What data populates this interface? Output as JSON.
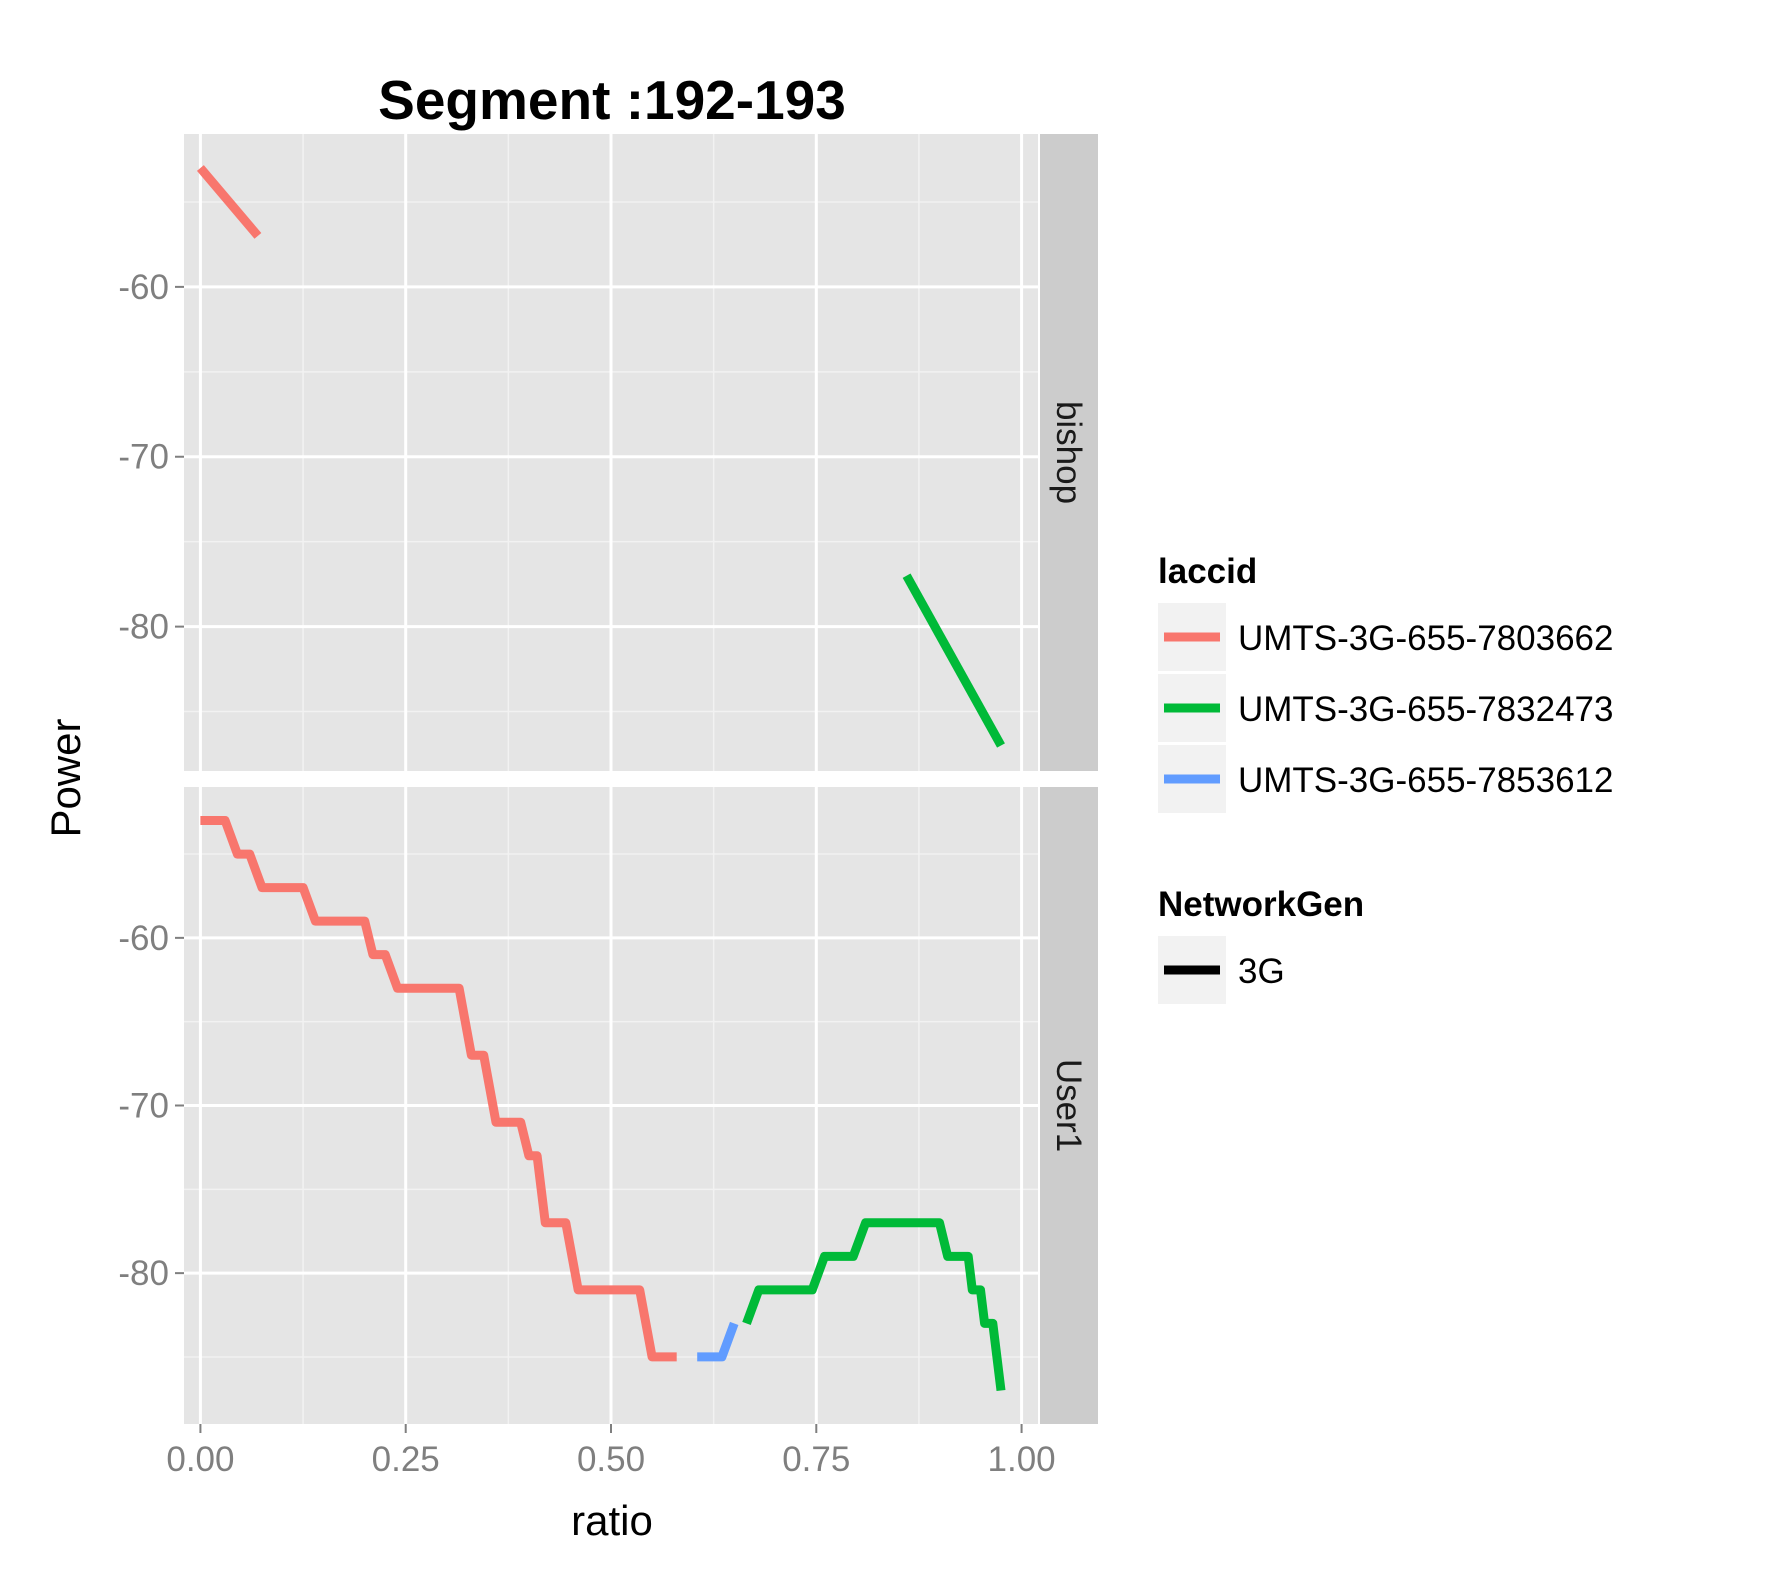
{
  "chart_data": {
    "type": "line",
    "title": "Segment :192-193",
    "xlabel": "ratio",
    "ylabel": "Power",
    "xlim": [
      -0.02,
      1.02
    ],
    "x_ticks": [
      "0.00",
      "0.25",
      "0.50",
      "0.75",
      "1.00"
    ],
    "x_tick_values": [
      0,
      0.25,
      0.5,
      0.75,
      1.0
    ],
    "grid": true,
    "legend_position": "right",
    "legends": [
      {
        "title": "laccid",
        "entries": [
          {
            "label": "UMTS-3G-655-7803662",
            "color": "#f8766d"
          },
          {
            "label": "UMTS-3G-655-7832473",
            "color": "#00ba38"
          },
          {
            "label": "UMTS-3G-655-7853612",
            "color": "#619cff"
          }
        ]
      },
      {
        "title": "NetworkGen",
        "entries": [
          {
            "label": "3G",
            "color": "#000000"
          }
        ]
      }
    ],
    "facets": [
      {
        "label": "bishop",
        "ylim": [
          -88.5,
          -51
        ],
        "y_ticks": [
          "-60",
          "-70",
          "-80"
        ],
        "y_tick_values": [
          -60,
          -70,
          -80
        ],
        "series": [
          {
            "name": "UMTS-3G-655-7803662",
            "color": "#f8766d",
            "points": [
              [
                0.0,
                -53
              ],
              [
                0.07,
                -57
              ]
            ]
          },
          {
            "name": "UMTS-3G-655-7832473",
            "color": "#00ba38",
            "points": [
              [
                0.86,
                -77
              ],
              [
                0.975,
                -87
              ]
            ]
          }
        ]
      },
      {
        "label": "User1",
        "ylim": [
          -89,
          -51
        ],
        "y_ticks": [
          "-60",
          "-70",
          "-80"
        ],
        "y_tick_values": [
          -60,
          -70,
          -80
        ],
        "series": [
          {
            "name": "UMTS-3G-655-7803662",
            "color": "#f8766d",
            "points": [
              [
                0.0,
                -53
              ],
              [
                0.03,
                -53
              ],
              [
                0.045,
                -55
              ],
              [
                0.06,
                -55
              ],
              [
                0.075,
                -57
              ],
              [
                0.125,
                -57
              ],
              [
                0.14,
                -59
              ],
              [
                0.2,
                -59
              ],
              [
                0.21,
                -61
              ],
              [
                0.225,
                -61
              ],
              [
                0.24,
                -63
              ],
              [
                0.315,
                -63
              ],
              [
                0.33,
                -67
              ],
              [
                0.345,
                -67
              ],
              [
                0.36,
                -71
              ],
              [
                0.39,
                -71
              ],
              [
                0.4,
                -73
              ],
              [
                0.41,
                -73
              ],
              [
                0.42,
                -77
              ],
              [
                0.445,
                -77
              ],
              [
                0.46,
                -81
              ],
              [
                0.535,
                -81
              ],
              [
                0.55,
                -85
              ],
              [
                0.58,
                -85
              ]
            ]
          },
          {
            "name": "UMTS-3G-655-7853612",
            "color": "#619cff",
            "points": [
              [
                0.605,
                -85
              ],
              [
                0.635,
                -85
              ],
              [
                0.65,
                -83
              ]
            ]
          },
          {
            "name": "UMTS-3G-655-7832473",
            "color": "#00ba38",
            "points": [
              [
                0.665,
                -83
              ],
              [
                0.68,
                -81
              ],
              [
                0.745,
                -81
              ],
              [
                0.76,
                -79
              ],
              [
                0.795,
                -79
              ],
              [
                0.81,
                -77
              ],
              [
                0.9,
                -77
              ],
              [
                0.91,
                -79
              ],
              [
                0.935,
                -79
              ],
              [
                0.94,
                -81
              ],
              [
                0.95,
                -81
              ],
              [
                0.955,
                -83
              ],
              [
                0.965,
                -83
              ],
              [
                0.97,
                -85
              ],
              [
                0.975,
                -87
              ]
            ]
          }
        ]
      }
    ]
  }
}
